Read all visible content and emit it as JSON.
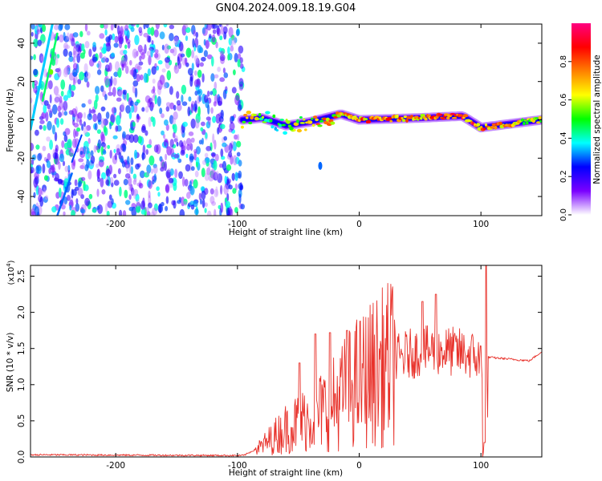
{
  "title": "GN04.2024.009.18.19.G04",
  "chart_data": [
    {
      "type": "heatmap",
      "xlabel": "Height of straight line (km)",
      "ylabel": "Frequency (Hz)",
      "xlim": [
        -270,
        150
      ],
      "ylim": [
        -50,
        50
      ],
      "xticks": [
        -200,
        -100,
        0,
        100
      ],
      "yticks": [
        -40,
        -20,
        0,
        20,
        40
      ],
      "colorbar": {
        "label": "Normalized spectral amplitude",
        "range": [
          0,
          1
        ],
        "ticks": [
          "0.0",
          "0.2",
          "0.4",
          "0.6",
          "0.8"
        ],
        "colors": [
          "#ffffff",
          "#7a00ff",
          "#0000ff",
          "#00ffff",
          "#00ff00",
          "#ffff00",
          "#ff8000",
          "#ff0000",
          "#ff0080"
        ]
      },
      "noise_region": {
        "x": [
          -270,
          -95
        ],
        "amplitude": 0.25
      },
      "signal_trace": {
        "frequency": [
          [
            -95,
            0
          ],
          [
            -80,
            1
          ],
          [
            -60,
            -3
          ],
          [
            -40,
            -1
          ],
          [
            -15,
            3
          ],
          [
            0,
            0
          ],
          [
            50,
            1
          ],
          [
            85,
            2
          ],
          [
            100,
            -4
          ],
          [
            150,
            0
          ]
        ],
        "peak_amplitude": [
          [
            -95,
            0.85
          ],
          [
            -70,
            0.5
          ],
          [
            -50,
            0.75
          ],
          [
            -20,
            0.85
          ],
          [
            0,
            0.9
          ],
          [
            50,
            0.95
          ],
          [
            85,
            1.0
          ],
          [
            150,
            0.7
          ]
        ]
      }
    },
    {
      "type": "line",
      "xlabel": "Height of straight line (km)",
      "ylabel": "SNR (10 * v/v)",
      "multiplier": "(x10",
      "multiplier_exp": "4",
      "multiplier_close": ")",
      "xlim": [
        -270,
        150
      ],
      "ylim": [
        0,
        2.65
      ],
      "xticks": [
        -200,
        -100,
        0,
        100
      ],
      "yticks": [
        "0.0",
        "0.5",
        "1.0",
        "1.5",
        "2.0",
        "2.5"
      ],
      "color": "#e8312a",
      "trend": [
        [
          -270,
          0.03
        ],
        [
          -95,
          0.02
        ],
        [
          -80,
          0.15
        ],
        [
          -60,
          0.4
        ],
        [
          -40,
          0.55
        ],
        [
          -20,
          0.75
        ],
        [
          -5,
          1.0
        ],
        [
          10,
          1.15
        ],
        [
          25,
          1.3
        ],
        [
          40,
          1.42
        ],
        [
          60,
          1.48
        ],
        [
          80,
          1.45
        ],
        [
          95,
          1.4
        ],
        [
          100,
          1.3
        ],
        [
          103,
          0.3
        ],
        [
          105,
          1.38
        ],
        [
          140,
          1.33
        ],
        [
          150,
          1.46
        ]
      ],
      "spikes": [
        [
          -49,
          1.3
        ],
        [
          -36,
          1.7
        ],
        [
          -24,
          1.72
        ],
        [
          -10,
          1.75
        ],
        [
          52,
          2.15
        ],
        [
          63,
          2.25
        ],
        [
          104,
          2.65
        ],
        [
          103,
          0.2
        ]
      ]
    }
  ]
}
